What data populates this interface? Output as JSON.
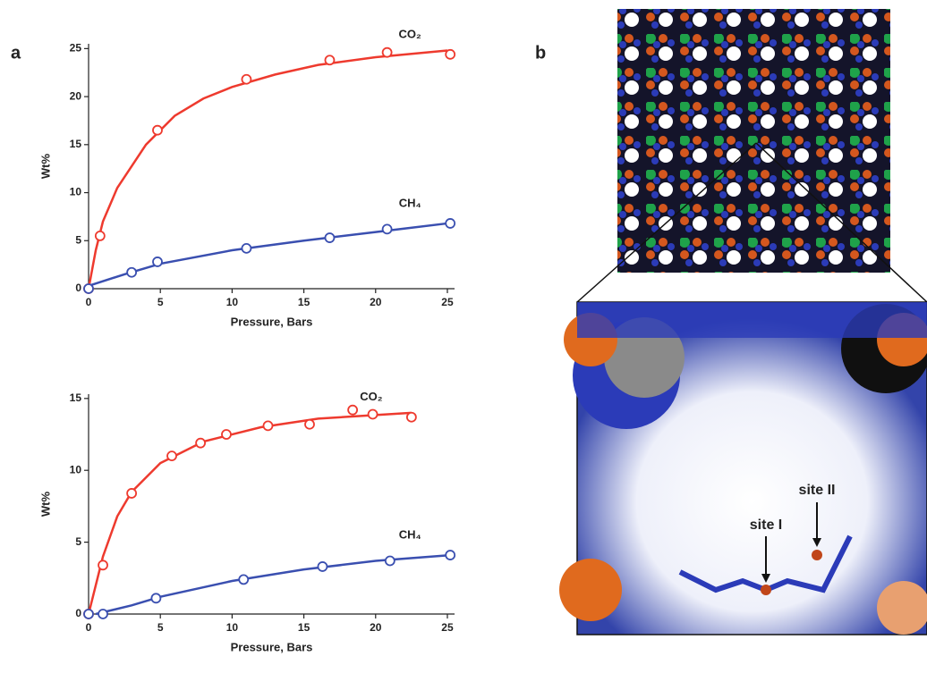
{
  "figure": {
    "panel_labels": [
      "a",
      "b"
    ],
    "annotations": [
      "site I",
      "site II"
    ]
  },
  "chart_data": [
    {
      "type": "scatter",
      "xlabel": "Pressure, Bars",
      "ylabel": "Wt%",
      "xlim": [
        0,
        25.5
      ],
      "ylim": [
        0,
        25.5
      ],
      "xticks": [
        0,
        5,
        10,
        15,
        20,
        25
      ],
      "yticks": [
        0,
        5,
        10,
        15,
        20,
        25
      ],
      "series": [
        {
          "name": "CO₂",
          "color": "#ee3a2e",
          "x": [
            0,
            0.8,
            4.8,
            11,
            16.8,
            20.8,
            25.2
          ],
          "values": [
            0,
            5.5,
            16.5,
            21.8,
            23.8,
            24.6,
            24.4
          ],
          "fit_x": [
            0,
            0.5,
            1,
            2,
            4,
            6,
            8,
            10,
            13,
            16,
            20,
            25
          ],
          "fit_values": [
            0,
            4,
            7,
            10.5,
            15,
            18,
            19.8,
            21,
            22.3,
            23.3,
            24.1,
            24.8
          ]
        },
        {
          "name": "CH₄",
          "color": "#3a4fb0",
          "x": [
            0,
            3,
            4.8,
            11,
            16.8,
            20.8,
            25.2
          ],
          "values": [
            0,
            1.7,
            2.8,
            4.2,
            5.3,
            6.2,
            6.8
          ],
          "fit_x": [
            0,
            2.5,
            5,
            10,
            15,
            20,
            25
          ],
          "fit_values": [
            0.3,
            1.5,
            2.6,
            4,
            5,
            5.9,
            6.8
          ]
        }
      ]
    },
    {
      "type": "scatter",
      "xlabel": "Pressure, Bars",
      "ylabel": "Wt%",
      "xlim": [
        0,
        25.5
      ],
      "ylim": [
        0,
        15.3
      ],
      "xticks": [
        0,
        5,
        10,
        15,
        20,
        25
      ],
      "yticks": [
        0,
        5,
        10,
        15
      ],
      "series": [
        {
          "name": "CO₂",
          "color": "#ee3a2e",
          "x": [
            0,
            1,
            3,
            5.8,
            7.8,
            9.6,
            12.5,
            15.4,
            18.4,
            19.8,
            22.5
          ],
          "values": [
            0,
            3.4,
            8.4,
            11,
            11.9,
            12.5,
            13.1,
            13.2,
            14.2,
            13.9,
            13.7
          ],
          "fit_x": [
            0,
            1,
            2,
            3,
            5,
            8,
            12,
            16,
            22.5
          ],
          "fit_values": [
            0,
            4,
            6.8,
            8.5,
            10.5,
            12,
            13,
            13.6,
            14
          ]
        },
        {
          "name": "CH₄",
          "color": "#3a4fb0",
          "x": [
            0,
            1,
            4.7,
            10.8,
            16.3,
            21,
            25.2
          ],
          "values": [
            0,
            0,
            1.1,
            2.4,
            3.3,
            3.7,
            4.1
          ],
          "fit_x": [
            0.5,
            3,
            5,
            10,
            15,
            20,
            25.2
          ],
          "fit_values": [
            0,
            0.6,
            1.2,
            2.3,
            3.1,
            3.7,
            4.1
          ]
        }
      ]
    }
  ]
}
